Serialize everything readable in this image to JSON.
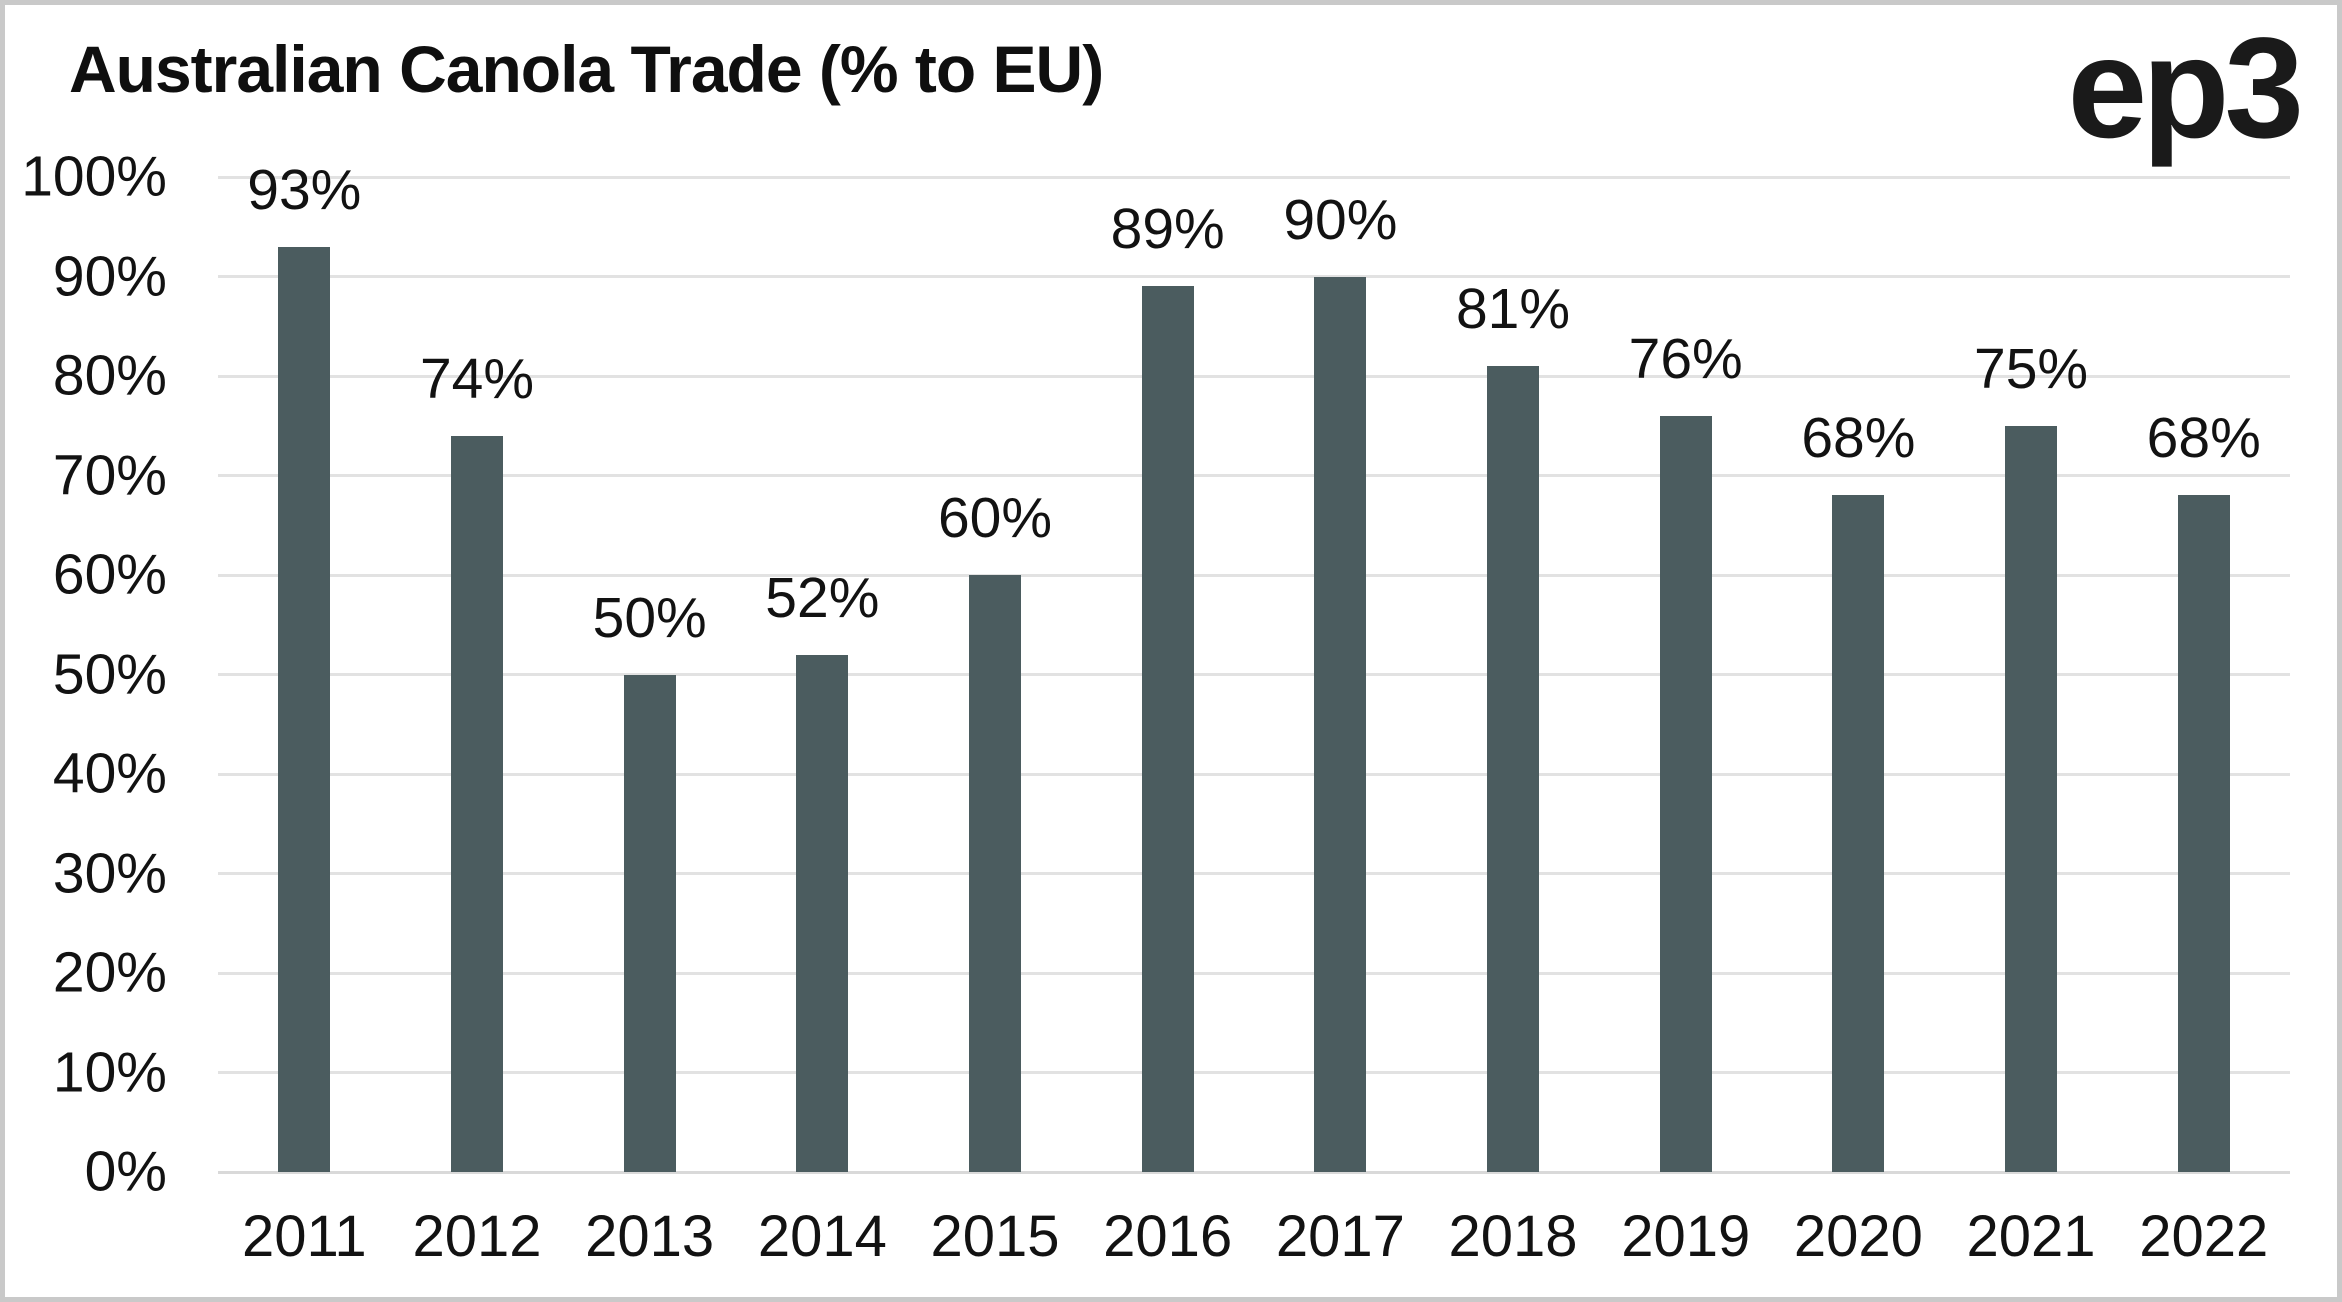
{
  "title": "Australian Canola Trade (% to EU)",
  "logo": "ep3",
  "colors": {
    "bar": "#4b5c5f",
    "gridline": "#e2e2e2",
    "baseline": "#d9d9d9",
    "text": "#121212",
    "frame_border": "#c9c9c9",
    "background": "#ffffff"
  },
  "chart_data": {
    "type": "bar",
    "title": "Australian Canola Trade (% to EU)",
    "categories": [
      "2011",
      "2012",
      "2013",
      "2014",
      "2015",
      "2016",
      "2017",
      "2018",
      "2019",
      "2020",
      "2021",
      "2022"
    ],
    "values": [
      93,
      74,
      50,
      52,
      60,
      89,
      90,
      81,
      76,
      68,
      75,
      68
    ],
    "value_labels": [
      "93%",
      "74%",
      "50%",
      "52%",
      "60%",
      "89%",
      "90%",
      "81%",
      "76%",
      "68%",
      "75%",
      "68%"
    ],
    "xlabel": "",
    "ylabel": "",
    "ylim": [
      0,
      100
    ],
    "yticks": [
      "0%",
      "10%",
      "20%",
      "30%",
      "40%",
      "50%",
      "60%",
      "70%",
      "80%",
      "90%",
      "100%"
    ],
    "grid": "horizontal",
    "legend": "none"
  }
}
